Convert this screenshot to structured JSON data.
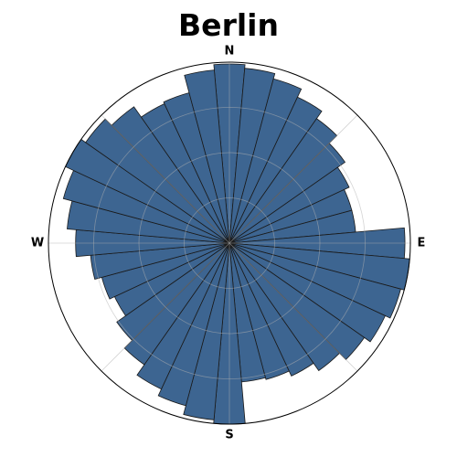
{
  "chart_data": {
    "type": "polar-bar",
    "title": "Berlin",
    "direction_labels": [
      "N",
      "E",
      "S",
      "W"
    ],
    "start": "north",
    "rotation": "clockwise",
    "sectors": 36,
    "sector_width_deg": 10,
    "rmax": 1.0,
    "radial_grid": [
      0.25,
      0.5,
      0.75
    ],
    "angular_grid_deg": [
      0,
      45,
      90,
      135,
      180,
      225,
      270,
      315
    ],
    "radial_tick_labels": false,
    "values": [
      0.99,
      0.97,
      0.94,
      0.89,
      0.84,
      0.78,
      0.73,
      0.7,
      0.7,
      0.97,
      1.0,
      0.98,
      0.95,
      0.91,
      0.86,
      0.81,
      0.78,
      0.77,
      1.0,
      0.98,
      0.93,
      0.89,
      0.82,
      0.76,
      0.7,
      0.73,
      0.77,
      0.85,
      0.9,
      0.95,
      1.0,
      0.97,
      0.92,
      0.85,
      0.86,
      0.96
    ],
    "bar_color": "#3d6591",
    "bar_edge_color": "#1a1a1a",
    "grid": true
  }
}
